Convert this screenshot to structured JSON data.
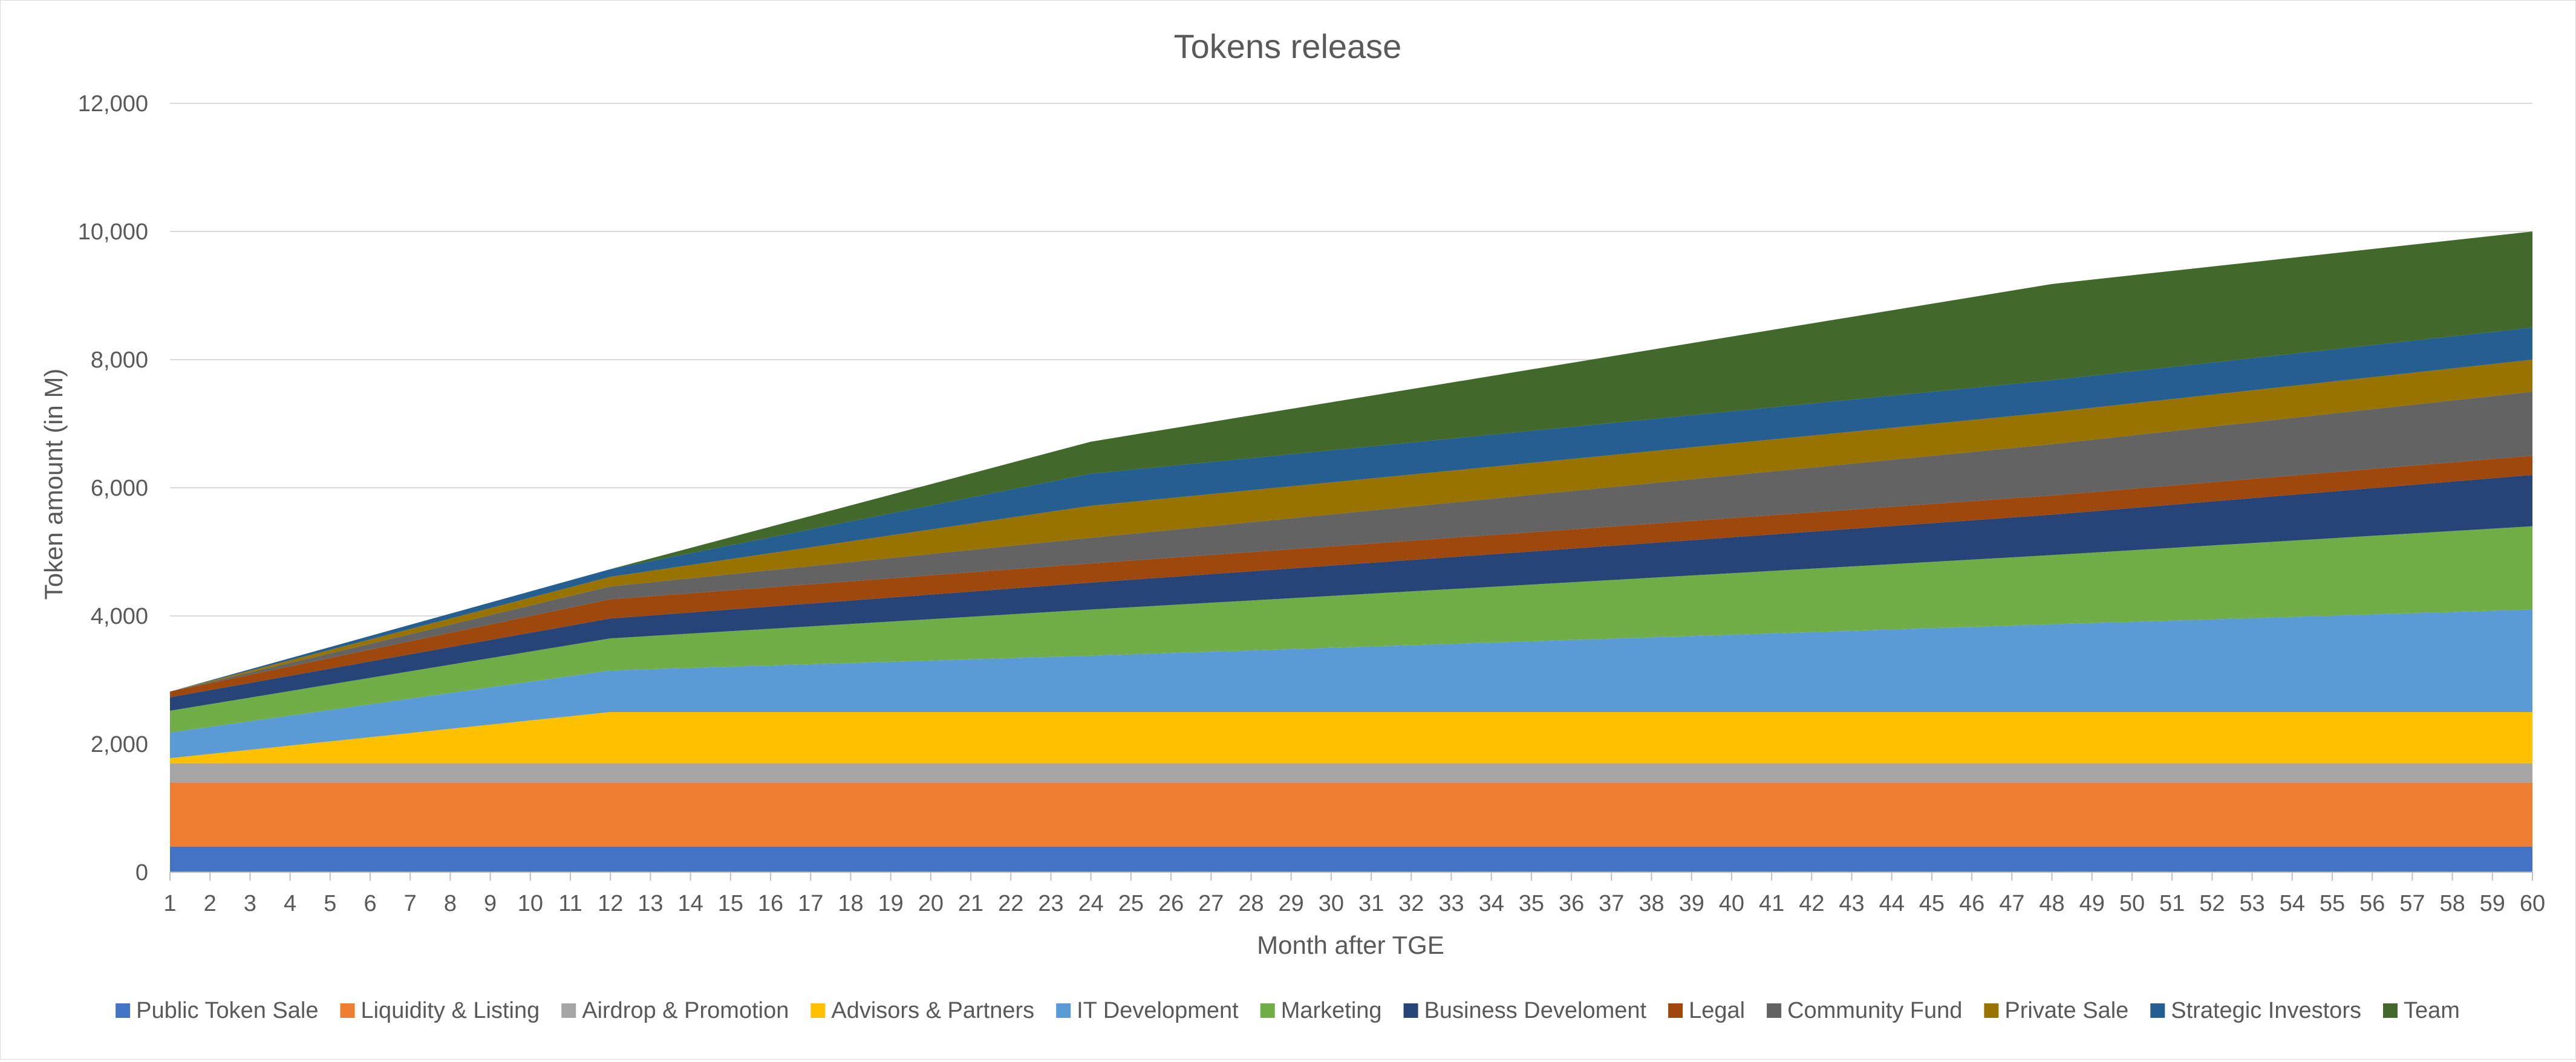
{
  "chart_data": {
    "type": "area",
    "stacked": true,
    "title": "Tokens release",
    "xlabel": "Month after TGE",
    "ylabel": "Token amount (in M)",
    "ylim": [
      0,
      12000
    ],
    "yticks": [
      0,
      2000,
      4000,
      6000,
      8000,
      10000,
      12000
    ],
    "ytick_labels": [
      "0",
      "2,000",
      "4,000",
      "6,000",
      "8,000",
      "10,000",
      "12,000"
    ],
    "grid": "horizontal",
    "legend_position": "bottom",
    "x": [
      1,
      2,
      3,
      4,
      5,
      6,
      7,
      8,
      9,
      10,
      11,
      12,
      13,
      14,
      15,
      16,
      17,
      18,
      19,
      20,
      21,
      22,
      23,
      24,
      25,
      26,
      27,
      28,
      29,
      30,
      31,
      32,
      33,
      34,
      35,
      36,
      37,
      38,
      39,
      40,
      41,
      42,
      43,
      44,
      45,
      46,
      47,
      48,
      49,
      50,
      51,
      52,
      53,
      54,
      55,
      56,
      57,
      58,
      59,
      60
    ],
    "keypoints": [
      1,
      12,
      24,
      48,
      60
    ],
    "series": [
      {
        "name": "Public Token Sale",
        "color": "#4472C4",
        "points": [
          [
            1,
            400
          ],
          [
            12,
            400
          ],
          [
            24,
            400
          ],
          [
            48,
            400
          ],
          [
            60,
            400
          ]
        ]
      },
      {
        "name": "Liquidity & Listing",
        "color": "#ED7D31",
        "points": [
          [
            1,
            1000
          ],
          [
            12,
            1000
          ],
          [
            24,
            1000
          ],
          [
            48,
            1000
          ],
          [
            60,
            1000
          ]
        ]
      },
      {
        "name": "Airdrop & Promotion",
        "color": "#A5A5A5",
        "points": [
          [
            1,
            300
          ],
          [
            12,
            300
          ],
          [
            24,
            300
          ],
          [
            48,
            300
          ],
          [
            60,
            300
          ]
        ]
      },
      {
        "name": "Advisors & Partners",
        "color": "#FFC000",
        "points": [
          [
            1,
            80
          ],
          [
            12,
            800
          ],
          [
            24,
            800
          ],
          [
            48,
            800
          ],
          [
            60,
            800
          ]
        ]
      },
      {
        "name": "IT Development",
        "color": "#5B9BD5",
        "points": [
          [
            1,
            400
          ],
          [
            12,
            650
          ],
          [
            24,
            880
          ],
          [
            48,
            1370
          ],
          [
            60,
            1600
          ]
        ]
      },
      {
        "name": "Marketing",
        "color": "#70AD47",
        "points": [
          [
            1,
            340
          ],
          [
            12,
            500
          ],
          [
            24,
            720
          ],
          [
            48,
            1080
          ],
          [
            60,
            1300
          ]
        ]
      },
      {
        "name": "Business Develoment",
        "color": "#264478",
        "points": [
          [
            1,
            210
          ],
          [
            12,
            310
          ],
          [
            24,
            420
          ],
          [
            48,
            630
          ],
          [
            60,
            800
          ]
        ]
      },
      {
        "name": "Legal",
        "color": "#9E480E",
        "points": [
          [
            1,
            90
          ],
          [
            12,
            300
          ],
          [
            24,
            300
          ],
          [
            48,
            300
          ],
          [
            60,
            300
          ]
        ]
      },
      {
        "name": "Community Fund",
        "color": "#636363",
        "points": [
          [
            1,
            0
          ],
          [
            12,
            200
          ],
          [
            24,
            400
          ],
          [
            48,
            800
          ],
          [
            60,
            1000
          ]
        ]
      },
      {
        "name": "Private Sale",
        "color": "#997300",
        "points": [
          [
            1,
            0
          ],
          [
            12,
            150
          ],
          [
            24,
            500
          ],
          [
            48,
            500
          ],
          [
            60,
            500
          ]
        ]
      },
      {
        "name": "Strategic Investors",
        "color": "#255E91",
        "points": [
          [
            1,
            0
          ],
          [
            12,
            120
          ],
          [
            24,
            500
          ],
          [
            48,
            500
          ],
          [
            60,
            500
          ]
        ]
      },
      {
        "name": "Team",
        "color": "#43682B",
        "points": [
          [
            1,
            0
          ],
          [
            12,
            0
          ],
          [
            24,
            500
          ],
          [
            48,
            1500
          ],
          [
            60,
            1500
          ]
        ]
      }
    ]
  }
}
